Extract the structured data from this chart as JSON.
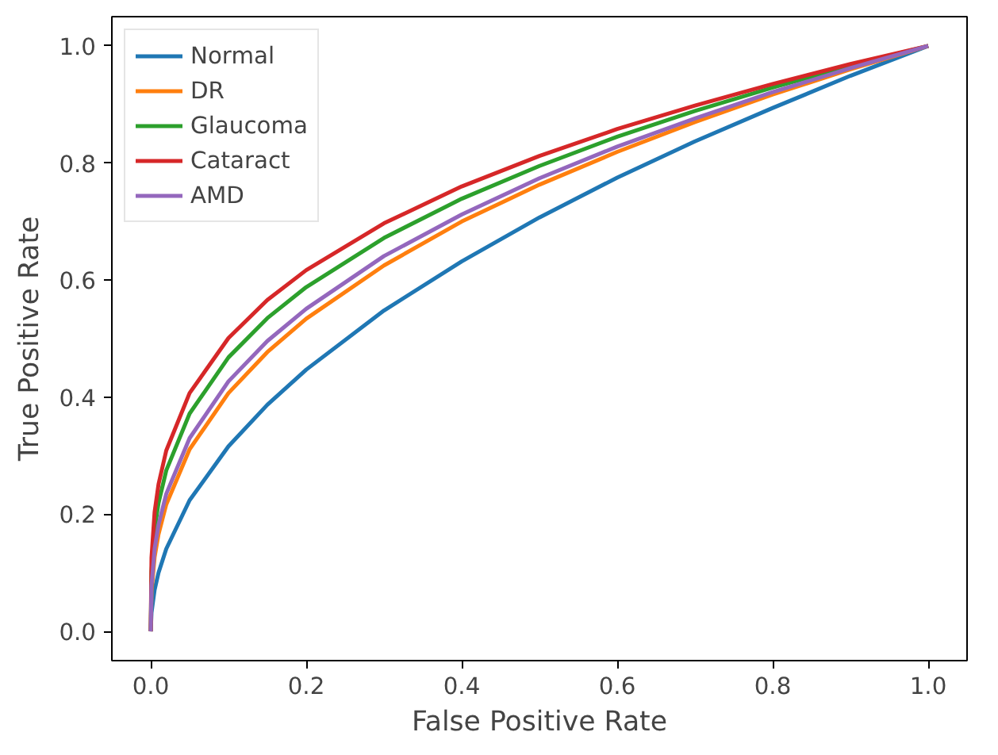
{
  "chart_data": {
    "type": "line",
    "xlabel": "False Positive Rate",
    "ylabel": "True Positive Rate",
    "x": [
      0,
      0.001,
      0.005,
      0.01,
      0.02,
      0.05,
      0.1,
      0.15,
      0.2,
      0.3,
      0.4,
      0.5,
      0.6,
      0.7,
      0.8,
      0.9,
      1
    ],
    "series": [
      {
        "name": "Normal",
        "color": "#1f77b4",
        "values": [
          0,
          0.032,
          0.071,
          0.1,
          0.141,
          0.224,
          0.316,
          0.387,
          0.447,
          0.548,
          0.632,
          0.707,
          0.775,
          0.837,
          0.894,
          0.949,
          1
        ]
      },
      {
        "name": "DR",
        "color": "#ff7f0e",
        "values": [
          0,
          0.068,
          0.127,
          0.166,
          0.217,
          0.311,
          0.407,
          0.477,
          0.534,
          0.625,
          0.7,
          0.763,
          0.819,
          0.87,
          0.917,
          0.96,
          1
        ]
      },
      {
        "name": "Glaucoma",
        "color": "#2ca02c",
        "values": [
          0,
          0.102,
          0.174,
          0.219,
          0.275,
          0.372,
          0.468,
          0.535,
          0.588,
          0.672,
          0.739,
          0.795,
          0.845,
          0.889,
          0.929,
          0.966,
          1
        ]
      },
      {
        "name": "Cataract",
        "color": "#d62728",
        "values": [
          0,
          0.126,
          0.204,
          0.251,
          0.309,
          0.407,
          0.501,
          0.566,
          0.617,
          0.697,
          0.76,
          0.812,
          0.858,
          0.898,
          0.935,
          0.969,
          1
        ]
      },
      {
        "name": "AMD",
        "color": "#9467bd",
        "values": [
          0,
          0.078,
          0.141,
          0.182,
          0.235,
          0.33,
          0.427,
          0.496,
          0.551,
          0.641,
          0.712,
          0.774,
          0.828,
          0.876,
          0.921,
          0.962,
          1
        ]
      }
    ],
    "xlim": [
      -0.05,
      1.05
    ],
    "ylim": [
      -0.05,
      1.05
    ],
    "xticks": [
      {
        "value": 0,
        "label": "0.0"
      },
      0.2,
      0.4,
      0.6,
      0.8,
      {
        "value": 1,
        "label": "1.0"
      }
    ],
    "yticks": [
      {
        "value": 0,
        "label": "0.0"
      },
      0.2,
      0.4,
      0.6,
      0.8,
      {
        "value": 1,
        "label": "1.0"
      }
    ],
    "legend": "top left",
    "grid": false
  }
}
